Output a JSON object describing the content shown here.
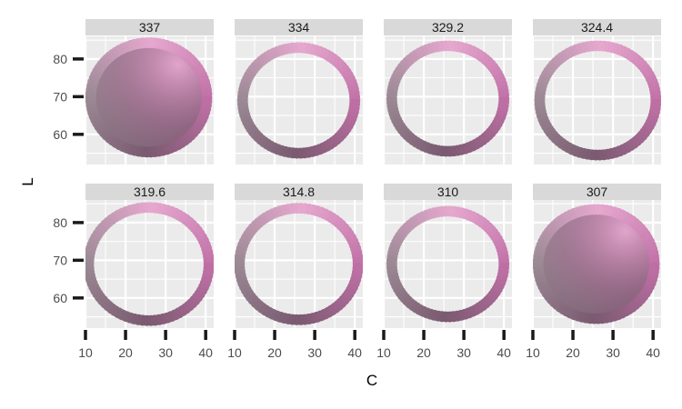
{
  "chart_data": {
    "type": "scatter",
    "layout": "facet-grid",
    "xlabel": "C",
    "ylabel": "L",
    "xlim": [
      10,
      42
    ],
    "ylim": [
      52,
      86
    ],
    "x_ticks": [
      10,
      20,
      30,
      40
    ],
    "y_ticks": [
      60,
      70,
      80
    ],
    "grid": true,
    "legend": "none",
    "colors": {
      "panel_bg": "#ebebeb",
      "grid_major": "#ffffff",
      "strip_bg": "#d9d9d9",
      "tick": "#1a1a1a",
      "top_pink": "#e6a8cf",
      "left_gray": "#9c8a95",
      "bottom_mauve": "#7a5a70",
      "right_magenta": "#c070a6",
      "center_disk": "#a08595"
    },
    "marker_radius_data": 1.35,
    "facets": [
      {
        "label": "337",
        "center": [
          25.8,
          69.8
        ],
        "radius": 14.5,
        "filled": true
      },
      {
        "label": "334",
        "center": [
          26.0,
          69.0
        ],
        "radius": 14.0,
        "filled": false
      },
      {
        "label": "329.2",
        "center": [
          26.0,
          69.5
        ],
        "radius": 14.0,
        "filled": false
      },
      {
        "label": "324.4",
        "center": [
          26.2,
          69.0
        ],
        "radius": 14.5,
        "filled": false
      },
      {
        "label": "319.6",
        "center": [
          25.8,
          69.0
        ],
        "radius": 15.0,
        "filled": false
      },
      {
        "label": "314.8",
        "center": [
          26.0,
          69.0
        ],
        "radius": 14.8,
        "filled": false
      },
      {
        "label": "310",
        "center": [
          26.0,
          69.0
        ],
        "radius": 14.0,
        "filled": false
      },
      {
        "label": "307",
        "center": [
          25.8,
          69.0
        ],
        "radius": 14.5,
        "filled": true
      }
    ]
  }
}
